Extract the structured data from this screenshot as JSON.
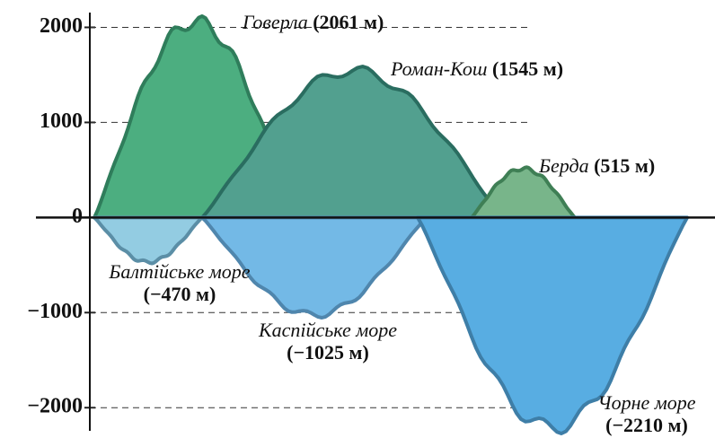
{
  "chart_data": {
    "type": "area",
    "categories": [
      "Говерла",
      "Роман-Кош",
      "Берда",
      "Балтійське море",
      "Каспійське море",
      "Чорне море"
    ],
    "values": [
      2061,
      1545,
      515,
      -470,
      -1025,
      -2210
    ],
    "value_labels": [
      "(2061 м)",
      "(1545 м)",
      "(515 м)",
      "(−470 м)",
      "(−1025 м)",
      "(−2210 м)"
    ],
    "colors": [
      "#4cae80",
      "#52a08f",
      "#78b58a",
      "#93cce2",
      "#73b9e6",
      "#58ade2"
    ],
    "ylim": [
      -2300,
      2250
    ],
    "yticks": [
      2000,
      1000,
      0,
      {
        "value": -1000,
        "label": "−1000"
      },
      {
        "value": -2000,
        "label": "−2000"
      }
    ],
    "grid": true
  }
}
